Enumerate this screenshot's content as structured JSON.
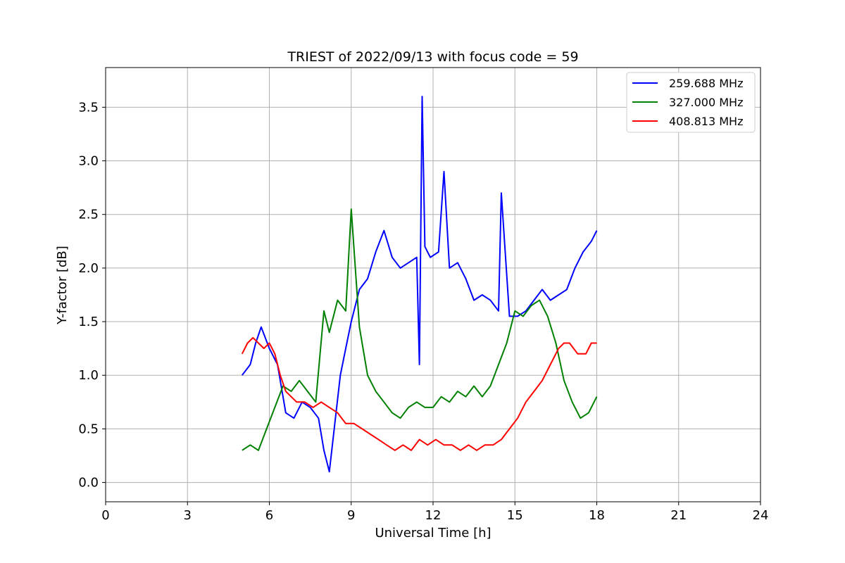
{
  "chart_data": {
    "type": "line",
    "title": "TRIEST of 2022/09/13 with focus code = 59",
    "xlabel": "Universal Time [h]",
    "ylabel": "Y-factor [dB]",
    "xlim": [
      0,
      24
    ],
    "ylim": [
      -0.18,
      3.87
    ],
    "xticks": [
      0,
      3,
      6,
      9,
      12,
      15,
      18,
      21,
      24
    ],
    "yticks": [
      0.0,
      0.5,
      1.0,
      1.5,
      2.0,
      2.5,
      3.0,
      3.5
    ],
    "xtick_labels": [
      "0",
      "3",
      "6",
      "9",
      "12",
      "15",
      "18",
      "21",
      "24"
    ],
    "ytick_labels": [
      "0.0",
      "0.5",
      "1.0",
      "1.5",
      "2.0",
      "2.5",
      "3.0",
      "3.5"
    ],
    "grid": true,
    "legend_position": "top-right",
    "series": [
      {
        "name": "259.688 MHz",
        "color": "#0000ff",
        "x": [
          5.0,
          5.3,
          5.5,
          5.7,
          6.0,
          6.3,
          6.6,
          6.9,
          7.2,
          7.5,
          7.8,
          8.0,
          8.2,
          8.4,
          8.6,
          8.8,
          9.0,
          9.3,
          9.6,
          9.9,
          10.2,
          10.5,
          10.8,
          11.1,
          11.4,
          11.5,
          11.6,
          11.7,
          11.9,
          12.2,
          12.4,
          12.6,
          12.9,
          13.2,
          13.5,
          13.8,
          14.1,
          14.4,
          14.5,
          14.8,
          15.1,
          15.4,
          15.7,
          16.0,
          16.3,
          16.6,
          16.9,
          17.2,
          17.5,
          17.8,
          18.0
        ],
        "y": [
          1.0,
          1.1,
          1.3,
          1.45,
          1.25,
          1.1,
          0.65,
          0.6,
          0.75,
          0.7,
          0.6,
          0.3,
          0.1,
          0.55,
          1.0,
          1.25,
          1.5,
          1.8,
          1.9,
          2.15,
          2.35,
          2.1,
          2.0,
          2.05,
          2.1,
          1.1,
          3.6,
          2.2,
          2.1,
          2.15,
          2.9,
          2.0,
          2.05,
          1.9,
          1.7,
          1.75,
          1.7,
          1.6,
          2.7,
          1.55,
          1.55,
          1.6,
          1.7,
          1.8,
          1.7,
          1.75,
          1.8,
          2.0,
          2.15,
          2.25,
          2.35
        ]
      },
      {
        "name": "327.000 MHz",
        "color": "#008000",
        "x": [
          5.0,
          5.3,
          5.6,
          5.9,
          6.2,
          6.5,
          6.8,
          7.1,
          7.4,
          7.7,
          8.0,
          8.2,
          8.5,
          8.8,
          9.0,
          9.3,
          9.6,
          9.9,
          10.2,
          10.5,
          10.8,
          11.1,
          11.4,
          11.7,
          12.0,
          12.3,
          12.6,
          12.9,
          13.2,
          13.5,
          13.8,
          14.1,
          14.4,
          14.7,
          15.0,
          15.3,
          15.6,
          15.9,
          16.2,
          16.5,
          16.8,
          17.1,
          17.4,
          17.7,
          18.0
        ],
        "y": [
          0.3,
          0.35,
          0.3,
          0.5,
          0.7,
          0.9,
          0.85,
          0.95,
          0.85,
          0.75,
          1.6,
          1.4,
          1.7,
          1.6,
          2.55,
          1.45,
          1.0,
          0.85,
          0.75,
          0.65,
          0.6,
          0.7,
          0.75,
          0.7,
          0.7,
          0.8,
          0.75,
          0.85,
          0.8,
          0.9,
          0.8,
          0.9,
          1.1,
          1.3,
          1.6,
          1.55,
          1.65,
          1.7,
          1.55,
          1.3,
          0.95,
          0.75,
          0.6,
          0.65,
          0.8
        ]
      },
      {
        "name": "408.813 MHz",
        "color": "#ff0000",
        "x": [
          5.0,
          5.2,
          5.4,
          5.6,
          5.8,
          6.0,
          6.2,
          6.4,
          6.6,
          6.8,
          7.0,
          7.3,
          7.6,
          7.9,
          8.2,
          8.5,
          8.8,
          9.1,
          9.4,
          9.7,
          10.0,
          10.3,
          10.6,
          10.9,
          11.2,
          11.5,
          11.8,
          12.1,
          12.4,
          12.7,
          13.0,
          13.3,
          13.6,
          13.9,
          14.2,
          14.5,
          14.8,
          15.1,
          15.4,
          15.7,
          16.0,
          16.3,
          16.6,
          16.8,
          17.0,
          17.3,
          17.6,
          17.8,
          18.0
        ],
        "y": [
          1.2,
          1.3,
          1.35,
          1.3,
          1.25,
          1.3,
          1.2,
          1.0,
          0.85,
          0.8,
          0.75,
          0.75,
          0.7,
          0.75,
          0.7,
          0.65,
          0.55,
          0.55,
          0.5,
          0.45,
          0.4,
          0.35,
          0.3,
          0.35,
          0.3,
          0.4,
          0.35,
          0.4,
          0.35,
          0.35,
          0.3,
          0.35,
          0.3,
          0.35,
          0.35,
          0.4,
          0.5,
          0.6,
          0.75,
          0.85,
          0.95,
          1.1,
          1.25,
          1.3,
          1.3,
          1.2,
          1.2,
          1.3,
          1.3
        ]
      }
    ]
  }
}
